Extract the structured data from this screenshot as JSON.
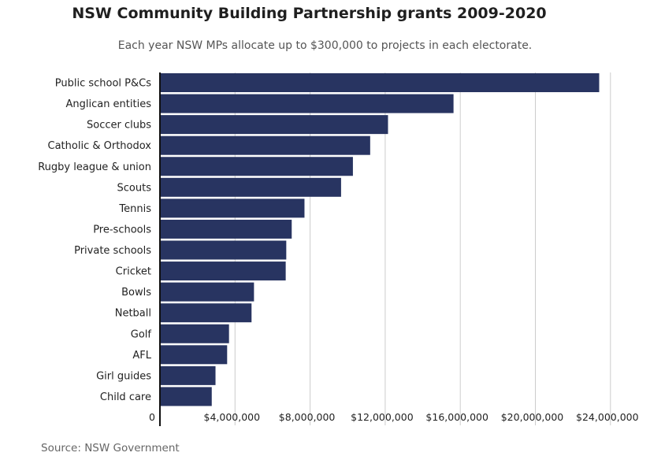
{
  "header": {
    "title": "NSW Community Building Partnership grants 2009-2020",
    "subtitle": "Each year NSW MPs allocate up to $300,000 to projects in each electorate."
  },
  "footer": {
    "source": "Source: NSW Government"
  },
  "colors": {
    "bar": "#283461",
    "gridline": "#cccccc",
    "axis": "#111111"
  },
  "chart_data": {
    "type": "bar",
    "orientation": "horizontal",
    "title": "NSW Community Building Partnership grants 2009-2020",
    "subtitle": "Each year NSW MPs allocate up to $300,000 to projects in each electorate.",
    "categories": [
      "Public school P&Cs",
      "Anglican entities",
      "Soccer clubs",
      "Catholic & Orthodox",
      "Rugby league & union",
      "Scouts",
      "Tennis",
      "Pre-schools",
      "Private schools",
      "Cricket",
      "Bowls",
      "Netball",
      "Golf",
      "AFL",
      "Girl guides",
      "Child care"
    ],
    "values": [
      23400000,
      15640000,
      12150000,
      11200000,
      10280000,
      9650000,
      7700000,
      7020000,
      6730000,
      6700000,
      5010000,
      4880000,
      3680000,
      3580000,
      2960000,
      2760000
    ],
    "xlim": [
      0,
      24000000
    ],
    "ticks": [
      0,
      4000000,
      8000000,
      12000000,
      16000000,
      20000000,
      24000000
    ],
    "tick_labels": [
      "0",
      "$4,000,000",
      "$8,000,000",
      "$12,000,000",
      "$16,000,000",
      "$20,000,000",
      "$24,000,000"
    ],
    "grid": true,
    "legend": "none",
    "xlabel": "",
    "ylabel": ""
  }
}
